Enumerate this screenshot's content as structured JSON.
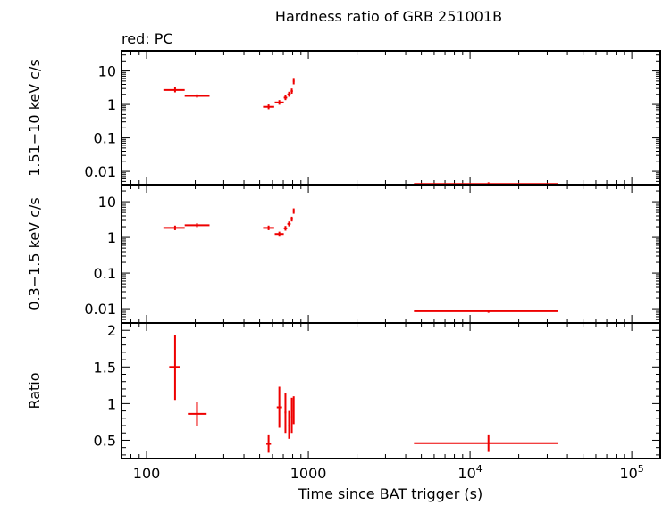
{
  "colors": {
    "data": "#ee0000",
    "axis": "#000000",
    "background": "#ffffff"
  },
  "chart_data": {
    "title": "Hardness ratio of GRB 251001B",
    "subtitle": "red: PC",
    "xlabel": "Time since BAT trigger (s)",
    "xscale": "log",
    "xlim": [
      70,
      150000
    ],
    "x_ticks": [
      {
        "value": 100,
        "base": "100",
        "exp": ""
      },
      {
        "value": 1000,
        "base": "1000",
        "exp": ""
      },
      {
        "value": 10000,
        "base": "10",
        "exp": "4"
      },
      {
        "value": 100000,
        "base": "10",
        "exp": "5"
      }
    ],
    "panels": [
      {
        "id": "hard",
        "type": "scatter",
        "ylabel": "1.51−10 keV c/s",
        "yscale": "log",
        "ylim": [
          0.004,
          40
        ],
        "y_ticks": [
          {
            "value": 10,
            "label": "10"
          },
          {
            "value": 1,
            "label": "1"
          },
          {
            "value": 0.1,
            "label": "0.1"
          },
          {
            "value": 0.01,
            "label": "0.01"
          }
        ],
        "points": [
          {
            "x": 150,
            "xlo": 127,
            "xhi": 172,
            "y": 2.7,
            "ylo": 2.3,
            "yhi": 3.3
          },
          {
            "x": 205,
            "xlo": 172,
            "xhi": 245,
            "y": 1.8,
            "ylo": 1.6,
            "yhi": 2.0
          },
          {
            "x": 568,
            "xlo": 525,
            "xhi": 615,
            "y": 0.85,
            "ylo": 0.72,
            "yhi": 1.0
          },
          {
            "x": 662,
            "xlo": 620,
            "xhi": 705,
            "y": 1.15,
            "ylo": 0.98,
            "yhi": 1.35
          },
          {
            "x": 722,
            "xlo": 705,
            "xhi": 740,
            "y": 1.6,
            "ylo": 1.35,
            "yhi": 1.9
          },
          {
            "x": 760,
            "xlo": 742,
            "xhi": 778,
            "y": 2.0,
            "ylo": 1.7,
            "yhi": 2.4
          },
          {
            "x": 790,
            "xlo": 778,
            "xhi": 803,
            "y": 2.5,
            "ylo": 2.1,
            "yhi": 3.0
          },
          {
            "x": 812,
            "xlo": 803,
            "xhi": 822,
            "y": 5.0,
            "ylo": 4.0,
            "yhi": 6.2
          },
          {
            "x": 13000,
            "xlo": 4500,
            "xhi": 35000,
            "y": 0.0042,
            "ylo": 0.0038,
            "yhi": 0.0047
          }
        ]
      },
      {
        "id": "soft",
        "type": "scatter",
        "ylabel": "0.3−1.5 keV c/s",
        "yscale": "log",
        "ylim": [
          0.004,
          30
        ],
        "y_ticks": [
          {
            "value": 10,
            "label": "10"
          },
          {
            "value": 1,
            "label": "1"
          },
          {
            "value": 0.1,
            "label": "0.1"
          },
          {
            "value": 0.01,
            "label": "0.01"
          }
        ],
        "points": [
          {
            "x": 150,
            "xlo": 127,
            "xhi": 172,
            "y": 1.85,
            "ylo": 1.6,
            "yhi": 2.15
          },
          {
            "x": 205,
            "xlo": 172,
            "xhi": 245,
            "y": 2.2,
            "ylo": 1.95,
            "yhi": 2.5
          },
          {
            "x": 568,
            "xlo": 525,
            "xhi": 615,
            "y": 1.85,
            "ylo": 1.6,
            "yhi": 2.15
          },
          {
            "x": 662,
            "xlo": 620,
            "xhi": 705,
            "y": 1.25,
            "ylo": 1.05,
            "yhi": 1.45
          },
          {
            "x": 722,
            "xlo": 705,
            "xhi": 740,
            "y": 1.8,
            "ylo": 1.55,
            "yhi": 2.1
          },
          {
            "x": 760,
            "xlo": 742,
            "xhi": 778,
            "y": 2.4,
            "ylo": 2.05,
            "yhi": 2.8
          },
          {
            "x": 790,
            "xlo": 778,
            "xhi": 803,
            "y": 3.3,
            "ylo": 2.8,
            "yhi": 3.8
          },
          {
            "x": 812,
            "xlo": 803,
            "xhi": 822,
            "y": 5.5,
            "ylo": 4.6,
            "yhi": 6.5
          },
          {
            "x": 13000,
            "xlo": 4500,
            "xhi": 35000,
            "y": 0.0085,
            "ylo": 0.0077,
            "yhi": 0.0093
          }
        ]
      },
      {
        "id": "ratio",
        "type": "scatter",
        "ylabel": "Ratio",
        "yscale": "linear",
        "ylim": [
          0.25,
          2.1
        ],
        "y_ticks": [
          {
            "value": 2,
            "label": "2"
          },
          {
            "value": 1.5,
            "label": "1.5"
          },
          {
            "value": 1,
            "label": "1"
          },
          {
            "value": 0.5,
            "label": "0.5"
          }
        ],
        "points": [
          {
            "x": 150,
            "xlo": 138,
            "xhi": 162,
            "y": 1.5,
            "ylo": 1.05,
            "yhi": 1.93
          },
          {
            "x": 205,
            "xlo": 180,
            "xhi": 235,
            "y": 0.86,
            "ylo": 0.7,
            "yhi": 1.02
          },
          {
            "x": 568,
            "xlo": 550,
            "xhi": 588,
            "y": 0.45,
            "ylo": 0.33,
            "yhi": 0.58
          },
          {
            "x": 662,
            "xlo": 638,
            "xhi": 688,
            "y": 0.95,
            "ylo": 0.67,
            "yhi": 1.23
          },
          {
            "x": 722,
            "xlo": 712,
            "xhi": 732,
            "y": 0.88,
            "ylo": 0.6,
            "yhi": 1.15
          },
          {
            "x": 760,
            "xlo": 750,
            "xhi": 770,
            "y": 0.7,
            "ylo": 0.52,
            "yhi": 0.9
          },
          {
            "x": 790,
            "xlo": 780,
            "xhi": 800,
            "y": 0.82,
            "ylo": 0.6,
            "yhi": 1.08
          },
          {
            "x": 812,
            "xlo": 804,
            "xhi": 820,
            "y": 0.9,
            "ylo": 0.72,
            "yhi": 1.1
          },
          {
            "x": 13000,
            "xlo": 4500,
            "xhi": 35000,
            "y": 0.46,
            "ylo": 0.34,
            "yhi": 0.58
          }
        ]
      }
    ]
  }
}
